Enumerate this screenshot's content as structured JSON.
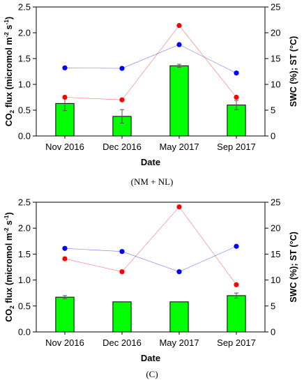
{
  "figure": {
    "panels": [
      {
        "caption": "(NM + NL)"
      },
      {
        "caption": "(C)"
      }
    ]
  },
  "chart_data": [
    {
      "type": "bar",
      "categories": [
        "Nov 2016",
        "Dec 2016",
        "May 2017",
        "Sep 2017"
      ],
      "xlabel": "Date",
      "ylabel": "CO2 flux (micromol m-2 s-1)",
      "ylabel_parts": [
        "CO",
        "2",
        " flux (micromol m",
        "-2",
        " s",
        "-1",
        ")"
      ],
      "y2label": "SWC (%); ST (°C)",
      "ylim": [
        0,
        2.5
      ],
      "y2lim": [
        0,
        25
      ],
      "yticks": [
        "0.0",
        "0.5",
        "1.0",
        "1.5",
        "2.0",
        "2.5"
      ],
      "y2ticks": [
        "0",
        "5",
        "10",
        "15",
        "20",
        "25"
      ],
      "grid": false,
      "bar_color": "#00ff00",
      "series": [
        {
          "type": "bar",
          "axis": "left",
          "color": "#00ff00",
          "values": [
            0.63,
            0.38,
            1.36,
            0.6
          ],
          "errors": [
            0.14,
            0.13,
            0.03,
            0.09
          ]
        },
        {
          "type": "line",
          "axis": "right",
          "color": "#ff0000",
          "values": [
            7.5,
            7.0,
            21.4,
            7.5
          ]
        },
        {
          "type": "line",
          "axis": "right",
          "color": "#0000ff",
          "values": [
            13.2,
            13.1,
            17.7,
            12.2
          ]
        }
      ]
    },
    {
      "type": "bar",
      "categories": [
        "Nov 2016",
        "Dec 2016",
        "May 2017",
        "Sep 2017"
      ],
      "xlabel": "Date",
      "ylabel": "CO2 flux (micromol m-2 s-1)",
      "ylabel_parts": [
        "CO",
        "2",
        " flux (micromol m",
        "-2",
        " s",
        "-1",
        ")"
      ],
      "y2label": "SWC (%); ST (°C)",
      "ylim": [
        0,
        2.5
      ],
      "y2lim": [
        0,
        25
      ],
      "yticks": [
        "0.0",
        "0.5",
        "1.0",
        "1.5",
        "2.0",
        "2.5"
      ],
      "y2ticks": [
        "0",
        "5",
        "10",
        "15",
        "20",
        "25"
      ],
      "grid": false,
      "bar_color": "#00ff00",
      "series": [
        {
          "type": "bar",
          "axis": "left",
          "color": "#00ff00",
          "values": [
            0.67,
            0.58,
            0.58,
            0.7
          ],
          "errors": [
            0.03,
            0.0,
            0.0,
            0.05
          ]
        },
        {
          "type": "line",
          "axis": "right",
          "color": "#ff0000",
          "values": [
            14.1,
            11.6,
            24.1,
            9.1
          ]
        },
        {
          "type": "line",
          "axis": "right",
          "color": "#0000ff",
          "values": [
            16.1,
            15.5,
            11.6,
            16.5
          ]
        }
      ]
    }
  ]
}
